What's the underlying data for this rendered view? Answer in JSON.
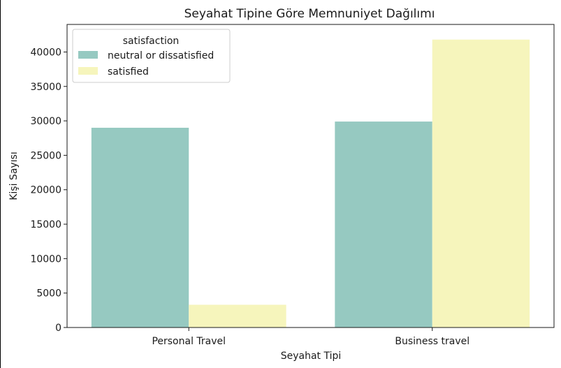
{
  "chart_data": {
    "type": "bar",
    "title": "Seyahat Tipine Göre Memnuniyet Dağılımı",
    "xlabel": "Seyahat Tipi",
    "ylabel": "Kişi Sayısı",
    "categories": [
      "Personal Travel",
      "Business travel"
    ],
    "series": [
      {
        "name": "neutral or dissatisfied",
        "values": [
          29000,
          29900
        ],
        "color": "#96c9c1"
      },
      {
        "name": "satisfied",
        "values": [
          3300,
          41800
        ],
        "color": "#f6f5bc"
      }
    ],
    "ylim": [
      0,
      44000
    ],
    "yticks": [
      0,
      5000,
      10000,
      15000,
      20000,
      25000,
      30000,
      35000,
      40000
    ],
    "legend": {
      "title": "satisfaction",
      "position": "top-left"
    },
    "grid": false
  }
}
